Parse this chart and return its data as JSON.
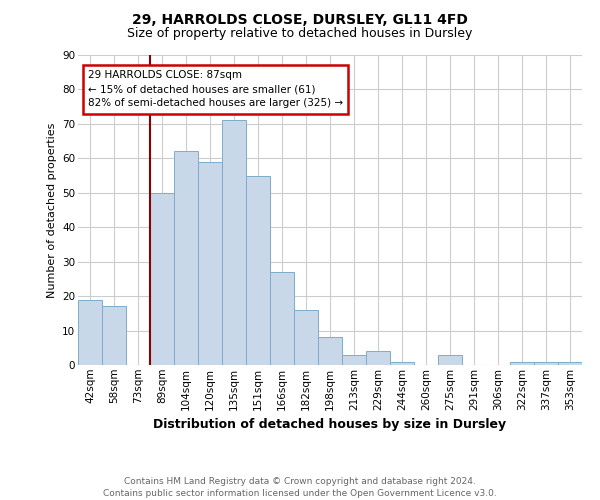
{
  "title1": "29, HARROLDS CLOSE, DURSLEY, GL11 4FD",
  "title2": "Size of property relative to detached houses in Dursley",
  "xlabel": "Distribution of detached houses by size in Dursley",
  "ylabel": "Number of detached properties",
  "footnote": "Contains HM Land Registry data © Crown copyright and database right 2024.\nContains public sector information licensed under the Open Government Licence v3.0.",
  "categories": [
    "42sqm",
    "58sqm",
    "73sqm",
    "89sqm",
    "104sqm",
    "120sqm",
    "135sqm",
    "151sqm",
    "166sqm",
    "182sqm",
    "198sqm",
    "213sqm",
    "229sqm",
    "244sqm",
    "260sqm",
    "275sqm",
    "291sqm",
    "306sqm",
    "322sqm",
    "337sqm",
    "353sqm"
  ],
  "values": [
    19,
    17,
    0,
    50,
    62,
    59,
    71,
    55,
    27,
    16,
    8,
    3,
    4,
    1,
    0,
    3,
    0,
    0,
    1,
    1,
    1
  ],
  "bar_color": "#c8d8e8",
  "bar_edge_color": "#7aaecc",
  "vline_color": "#8b0000",
  "annotation_text": "29 HARROLDS CLOSE: 87sqm\n← 15% of detached houses are smaller (61)\n82% of semi-detached houses are larger (325) →",
  "annotation_box_color": "white",
  "annotation_box_edge_color": "#cc0000",
  "ylim": [
    0,
    90
  ],
  "yticks": [
    0,
    10,
    20,
    30,
    40,
    50,
    60,
    70,
    80,
    90
  ],
  "grid_color": "#cccccc",
  "background_color": "white",
  "title1_fontsize": 10,
  "title2_fontsize": 9,
  "ylabel_fontsize": 8,
  "xlabel_fontsize": 9,
  "footnote_fontsize": 6.5,
  "footnote_color": "#666666",
  "tick_fontsize": 7.5
}
